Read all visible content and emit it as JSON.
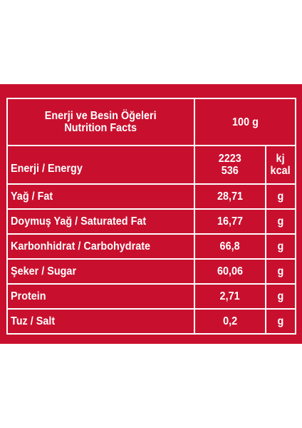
{
  "header": {
    "title_tr": "Enerji ve Besin Öğeleri",
    "title_en": "Nutrition Facts",
    "per": "100 g"
  },
  "energy": {
    "label": "Enerji / Energy",
    "value_kj": "2223",
    "value_kcal": "536",
    "unit_kj": "kj",
    "unit_kcal": "kcal"
  },
  "rows": [
    {
      "label": "Yağ / Fat",
      "value": "28,71",
      "unit": "g"
    },
    {
      "label": "Doymuş Yağ / Saturated Fat",
      "value": "16,77",
      "unit": "g"
    },
    {
      "label": "Karbonhidrat / Carbohydrate",
      "value": "66,8",
      "unit": "g"
    },
    {
      "label": "Şeker / Sugar",
      "value": "60,06",
      "unit": "g"
    },
    {
      "label": "Protein",
      "value": "2,71",
      "unit": "g"
    },
    {
      "label": "Tuz / Salt",
      "value": "0,2",
      "unit": "g"
    }
  ],
  "colors": {
    "background": "#c8102e",
    "text": "#ffffff",
    "lines": "#ffffff"
  }
}
